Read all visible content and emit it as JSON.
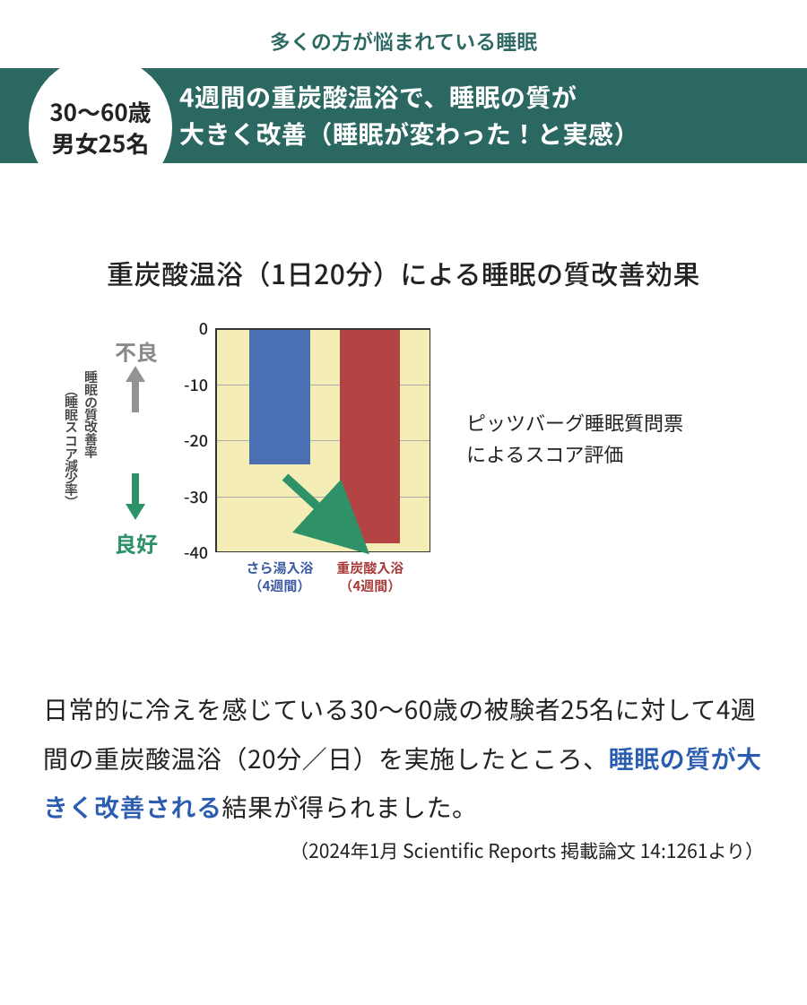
{
  "colors": {
    "accent_teal": "#2b6862",
    "tagline_teal": "#2b6862",
    "banner_text": "#ffffff",
    "circle_bg": "#ffffff",
    "circle_border": "#efefef",
    "circle_text": "#222222",
    "chart_bg": "#f5edb6",
    "grid": "#aaaaaa",
    "axis": "#333333",
    "bar_blue": "#4a6fb3",
    "bar_red": "#b44343",
    "label_blue": "#3b5aa3",
    "label_red": "#a83a3a",
    "arrow_gray": "#939393",
    "arrow_green": "#2f9168",
    "good_green": "#2f9168",
    "bad_gray": "#8a8a8a",
    "highlight_blue": "#2a5db0"
  },
  "header": {
    "tagline": "多くの方が悩まれている睡眠",
    "badge_line1": "30～60歳",
    "badge_line2": "男女25名",
    "banner_line1": "4週間の重炭酸温浴で、睡眠の質が",
    "banner_line2": "大きく改善（睡眠が変わった！と実感）"
  },
  "chart": {
    "type": "bar",
    "title": "重炭酸温浴（1日20分）による睡眠の質改善効果",
    "y_axis_vertical_sub": "睡眠の質改善率",
    "y_axis_vertical_main": "（睡眠スコア減少率）",
    "y_top_label": "不良",
    "y_bottom_label": "良好",
    "y_top_label_color_key": "bad_gray",
    "y_bottom_label_color_key": "good_green",
    "ylim": [
      -40,
      0
    ],
    "ytick_step": 10,
    "yticks": [
      0,
      -10,
      -20,
      -30,
      -40
    ],
    "series": [
      {
        "label_line1": "さら湯入浴",
        "label_line2": "（4週間）",
        "value": -24,
        "color_key": "bar_blue",
        "label_color_key": "label_blue",
        "x_center_pct": 30,
        "width_pct": 28
      },
      {
        "label_line1": "重炭酸入浴",
        "label_line2": "（4週間）",
        "value": -38,
        "color_key": "bar_red",
        "label_color_key": "label_red",
        "x_center_pct": 72,
        "width_pct": 28
      }
    ],
    "legend_note_line1": "ピッツバーグ睡眠質問票",
    "legend_note_line2": "によるスコア評価",
    "plot_bg_color_key": "chart_bg",
    "grid_color_key": "grid",
    "title_fontsize": 30,
    "tick_fontsize": 18,
    "bar_label_fontsize": 15
  },
  "body": {
    "text_pre": "日常的に冷えを感じている30～60歳の被験者25名に対して4週間の重炭酸温浴（20分／日）を実施したところ、",
    "text_highlight": "睡眠の質が大きく改善される",
    "text_post": "結果が得られました。",
    "citation": "（2024年1月 Scientific Reports 掲載論文 14:1261より）"
  }
}
